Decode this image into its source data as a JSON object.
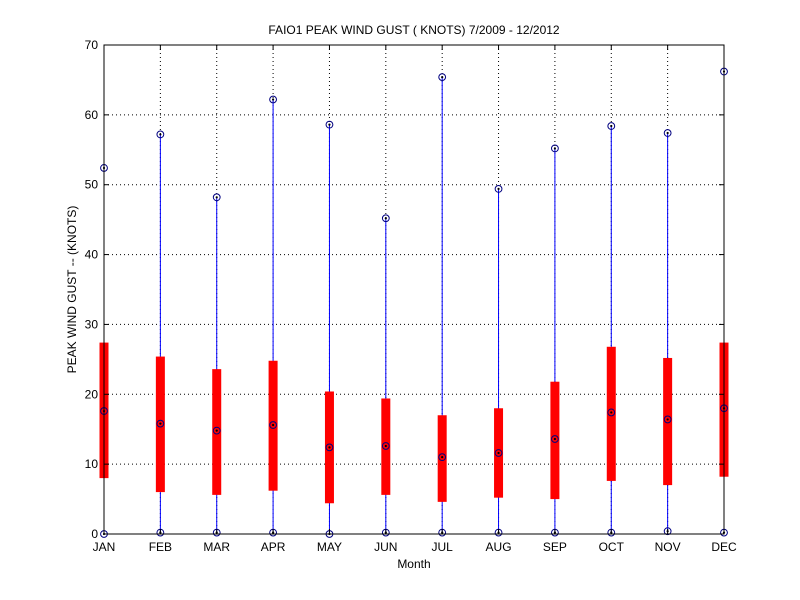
{
  "chart_data": {
    "type": "box",
    "title": "FAIO1  PEAK WIND GUST ( KNOTS) 7/2009 - 12/2012",
    "xlabel": "Month",
    "ylabel": "PEAK WIND GUST -- (KNOTS)",
    "ylim": [
      0,
      70
    ],
    "yticks": [
      0,
      10,
      20,
      30,
      40,
      50,
      60,
      70
    ],
    "grid": true,
    "categories": [
      "JAN",
      "FEB",
      "MAR",
      "APR",
      "MAY",
      "JUN",
      "JUL",
      "AUG",
      "SEP",
      "OCT",
      "NOV",
      "DEC"
    ],
    "series": [
      {
        "min": [
          0.0,
          0.2,
          0.2,
          0.2,
          0.0,
          0.2,
          0.2,
          0.2,
          0.2,
          0.2,
          0.4,
          0.2
        ],
        "q1": [
          8.0,
          6.0,
          5.6,
          6.2,
          4.4,
          5.6,
          4.6,
          5.2,
          5.0,
          7.6,
          7.0,
          8.2
        ],
        "median": [
          17.6,
          15.8,
          14.8,
          15.6,
          12.4,
          12.6,
          11.0,
          11.6,
          13.6,
          17.4,
          16.4,
          18.0
        ],
        "q3": [
          27.4,
          25.4,
          23.6,
          24.8,
          20.4,
          19.4,
          17.0,
          18.0,
          21.8,
          26.8,
          25.2,
          27.4
        ],
        "max": [
          52.4,
          57.2,
          48.2,
          62.2,
          58.6,
          45.2,
          65.4,
          49.4,
          55.2,
          58.4,
          57.4,
          66.2
        ]
      }
    ],
    "colors": {
      "whisker": "#0000ff",
      "box": "#ff0000",
      "marker": "#000080"
    }
  }
}
